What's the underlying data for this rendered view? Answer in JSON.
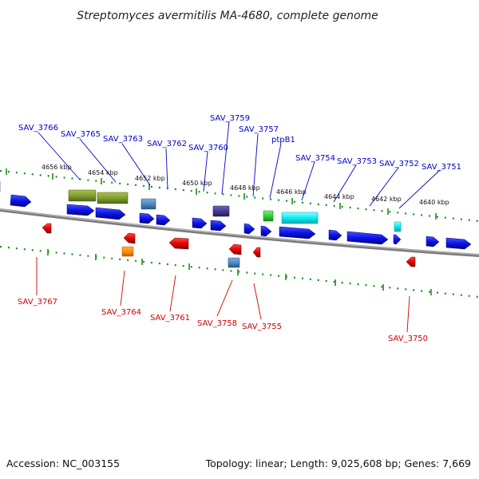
{
  "title": "Streptomyces avermitilis MA-4680, complete genome",
  "footer": {
    "accession": "Accession: NC_003155",
    "summary": "Topology: linear; Length: 9,025,608 bp; Genes: 7,669"
  },
  "scale_labels": [
    "4656 kbp",
    "4654 kbp",
    "4652 kbp",
    "4650 kbp",
    "4648 kbp",
    "4646 kbp",
    "4644 kbp",
    "4642 kbp",
    "4640 kbp"
  ],
  "genes_top": [
    "SAV_3766",
    "SAV_3765",
    "SAV_3763",
    "SAV_3762",
    "SAV_3760",
    "SAV_3759",
    "SAV_3757",
    "ptpB1",
    "SAV_3754",
    "SAV_3753",
    "SAV_3752",
    "SAV_3751"
  ],
  "genes_bottom": [
    "SAV_3767",
    "SAV_3764",
    "SAV_3761",
    "SAV_3758",
    "SAV_3755",
    "SAV_3750"
  ],
  "colors": {
    "forward_gene": "#0a14e6",
    "reverse_gene": "#e60000",
    "backbone": "#8a8a8a",
    "tick": "#1e8c1e",
    "label_top": "#0000c8",
    "label_bottom": "#d00000",
    "olive_box": "#7f9a2c",
    "steelblue_box": "#4a86c0",
    "purple_box": "#3f3a8a",
    "green_box": "#2ecc2e",
    "cyan_box": "#00e8ee",
    "orange_box": "#ff8c00"
  }
}
